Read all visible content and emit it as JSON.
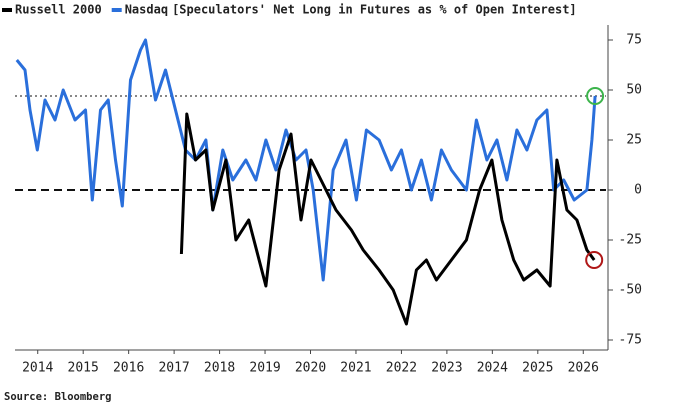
{
  "chart_data": {
    "type": "line",
    "title": "[Speculators' Net Long in Futures as % of Open Interest]",
    "source": "Source: Bloomberg",
    "xlim": [
      2014,
      2027
    ],
    "xticks": [
      {
        "value": 2014.5,
        "label": "2014"
      },
      {
        "value": 2015.5,
        "label": "2015"
      },
      {
        "value": 2016.5,
        "label": "2016"
      },
      {
        "value": 2017.5,
        "label": "2017"
      },
      {
        "value": 2018.5,
        "label": "2018"
      },
      {
        "value": 2019.5,
        "label": "2019"
      },
      {
        "value": 2020.5,
        "label": "2020"
      },
      {
        "value": 2021.5,
        "label": "2021"
      },
      {
        "value": 2022.5,
        "label": "2022"
      },
      {
        "value": 2023.5,
        "label": "2023"
      },
      {
        "value": 2024.5,
        "label": "2024"
      },
      {
        "value": 2025.5,
        "label": "2025"
      },
      {
        "value": 2026.5,
        "label": "2026"
      }
    ],
    "ylim": [
      -80,
      80
    ],
    "yticks": [
      75,
      50,
      25,
      0,
      -25,
      -50,
      -75
    ],
    "reference_lines": [
      {
        "value": 0,
        "style": "dashed"
      },
      {
        "value": 47,
        "style": "dotted"
      }
    ],
    "series": [
      {
        "name": "Russell 2000",
        "color": "#000000",
        "marker_color": "#b01818",
        "x": [
          2017.66,
          2017.78,
          2017.97,
          2018.2,
          2018.35,
          2018.64,
          2018.86,
          2019.14,
          2019.52,
          2019.81,
          2020.07,
          2020.29,
          2020.51,
          2020.73,
          2021.06,
          2021.4,
          2021.66,
          2022.01,
          2022.32,
          2022.61,
          2022.83,
          2023.05,
          2023.27,
          2023.6,
          2023.93,
          2024.22,
          2024.49,
          2024.71,
          2024.97,
          2025.19,
          2025.48,
          2025.77,
          2025.92,
          2026.14,
          2026.36,
          2026.58,
          2026.74
        ],
        "values": [
          -32,
          38,
          15,
          20,
          -10,
          15,
          -25,
          -15,
          -48,
          10,
          28,
          -15,
          15,
          5,
          -10,
          -20,
          -30,
          -40,
          -50,
          -67,
          -40,
          -35,
          -45,
          -35,
          -25,
          0,
          15,
          -15,
          -35,
          -45,
          -40,
          -48,
          15,
          -10,
          -15,
          -30,
          -35
        ]
      },
      {
        "name": "Nasdaq",
        "color": "#2a6fdb",
        "marker_color": "#3cb44b",
        "x": [
          2014.04,
          2014.22,
          2014.33,
          2014.49,
          2014.66,
          2014.88,
          2015.06,
          2015.32,
          2015.55,
          2015.7,
          2015.88,
          2016.05,
          2016.21,
          2016.36,
          2016.54,
          2016.76,
          2016.87,
          2017.09,
          2017.31,
          2017.53,
          2017.75,
          2017.97,
          2018.2,
          2018.35,
          2018.57,
          2018.79,
          2019.08,
          2019.3,
          2019.52,
          2019.74,
          2019.96,
          2020.18,
          2020.4,
          2020.56,
          2020.78,
          2021.0,
          2021.28,
          2021.51,
          2021.73,
          2022.01,
          2022.28,
          2022.5,
          2022.72,
          2022.94,
          2023.16,
          2023.38,
          2023.6,
          2023.93,
          2024.15,
          2024.38,
          2024.6,
          2024.82,
          2025.04,
          2025.26,
          2025.48,
          2025.7,
          2025.85,
          2026.07,
          2026.3,
          2026.58,
          2026.69,
          2026.76
        ],
        "values": [
          65,
          60,
          40,
          20,
          45,
          35,
          50,
          35,
          40,
          -5,
          40,
          45,
          15,
          -8,
          55,
          70,
          75,
          45,
          60,
          40,
          20,
          15,
          25,
          -10,
          20,
          5,
          15,
          5,
          25,
          10,
          30,
          15,
          20,
          0,
          -45,
          10,
          25,
          -5,
          30,
          25,
          10,
          20,
          0,
          15,
          -5,
          20,
          10,
          0,
          35,
          15,
          25,
          5,
          30,
          20,
          35,
          40,
          0,
          5,
          -5,
          0,
          25,
          47
        ]
      }
    ]
  }
}
